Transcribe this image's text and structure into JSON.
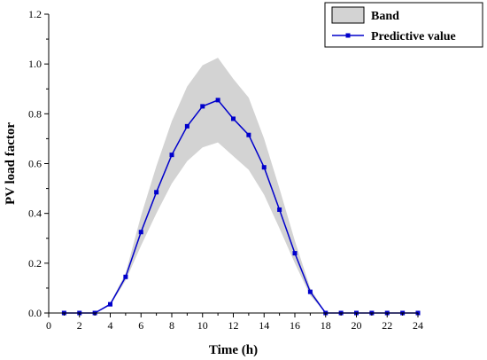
{
  "chart_data": {
    "type": "line",
    "xlabel": "Time (h)",
    "ylabel": "PV load factor",
    "xlim": [
      0,
      24
    ],
    "ylim": [
      0,
      1.2
    ],
    "x_ticks": [
      0,
      2,
      4,
      6,
      8,
      10,
      12,
      14,
      16,
      18,
      20,
      22,
      24
    ],
    "y_ticks": [
      0.0,
      0.2,
      0.4,
      0.6,
      0.8,
      1.0,
      1.2
    ],
    "x_tick_labels": [
      "0",
      "2",
      "4",
      "6",
      "8",
      "10",
      "12",
      "14",
      "16",
      "18",
      "20",
      "22",
      "24"
    ],
    "y_tick_labels": [
      "0.0",
      "0.2",
      "0.4",
      "0.6",
      "0.8",
      "1.0",
      "1.2"
    ],
    "x": [
      1,
      2,
      3,
      4,
      5,
      6,
      7,
      8,
      9,
      10,
      11,
      12,
      13,
      14,
      15,
      16,
      17,
      18,
      19,
      20,
      21,
      22,
      23,
      24
    ],
    "series": [
      {
        "name": "Predictive value",
        "color": "#0000cc",
        "values": [
          0,
          0,
          0,
          0.035,
          0.145,
          0.325,
          0.485,
          0.635,
          0.75,
          0.83,
          0.855,
          0.78,
          0.715,
          0.585,
          0.415,
          0.24,
          0.085,
          0,
          0,
          0,
          0,
          0,
          0,
          0
        ]
      }
    ],
    "band": {
      "name": "Band",
      "color": "#d3d3d3",
      "upper": [
        0,
        0,
        0,
        0.04,
        0.16,
        0.39,
        0.59,
        0.77,
        0.91,
        0.995,
        1.025,
        0.94,
        0.865,
        0.7,
        0.5,
        0.29,
        0.1,
        0,
        0,
        0,
        0,
        0,
        0,
        0
      ],
      "lower": [
        0,
        0,
        0,
        0.03,
        0.13,
        0.27,
        0.4,
        0.52,
        0.61,
        0.665,
        0.685,
        0.63,
        0.575,
        0.475,
        0.34,
        0.2,
        0.07,
        0,
        0,
        0,
        0,
        0,
        0,
        0
      ]
    },
    "legend_position": "top-right",
    "grid": false
  }
}
